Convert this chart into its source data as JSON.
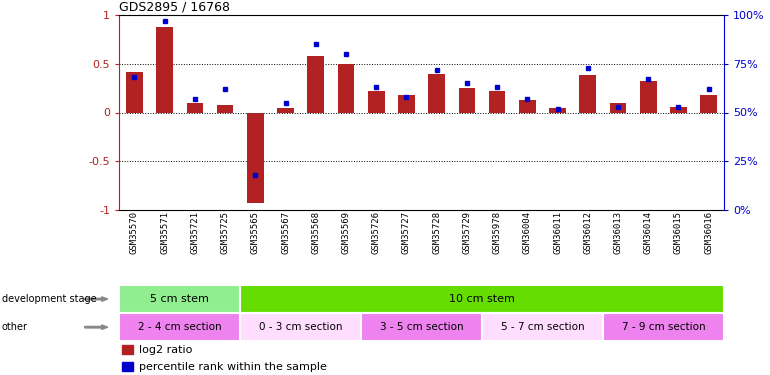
{
  "title": "GDS2895 / 16768",
  "samples": [
    "GSM35570",
    "GSM35571",
    "GSM35721",
    "GSM35725",
    "GSM35565",
    "GSM35567",
    "GSM35568",
    "GSM35569",
    "GSM35726",
    "GSM35727",
    "GSM35728",
    "GSM35729",
    "GSM35978",
    "GSM36004",
    "GSM36011",
    "GSM36012",
    "GSM36013",
    "GSM36014",
    "GSM36015",
    "GSM36016"
  ],
  "log2_ratio": [
    0.42,
    0.88,
    0.1,
    0.08,
    -0.93,
    0.05,
    0.58,
    0.5,
    0.22,
    0.18,
    0.4,
    0.25,
    0.22,
    0.13,
    0.05,
    0.38,
    0.1,
    0.32,
    0.06,
    0.18
  ],
  "percentile": [
    68,
    97,
    57,
    62,
    18,
    55,
    85,
    80,
    63,
    58,
    72,
    65,
    63,
    57,
    52,
    73,
    53,
    67,
    53,
    62
  ],
  "bar_color": "#b22222",
  "dot_color": "#0000cd",
  "ylim_left": [
    -1,
    1
  ],
  "ylim_right": [
    0,
    100
  ],
  "yticks_left": [
    -1,
    -0.5,
    0,
    0.5,
    1
  ],
  "yticks_right": [
    0,
    25,
    50,
    75,
    100
  ],
  "hlines": [
    -0.5,
    0,
    0.5
  ],
  "dev_stage_groups": [
    {
      "label": "5 cm stem",
      "start": 0,
      "end": 4,
      "color": "#90ee90"
    },
    {
      "label": "10 cm stem",
      "start": 4,
      "end": 20,
      "color": "#66dd00"
    }
  ],
  "other_groups": [
    {
      "label": "2 - 4 cm section",
      "start": 0,
      "end": 4,
      "color": "#ee82ee"
    },
    {
      "label": "0 - 3 cm section",
      "start": 4,
      "end": 8,
      "color": "#ffddff"
    },
    {
      "label": "3 - 5 cm section",
      "start": 8,
      "end": 12,
      "color": "#ee82ee"
    },
    {
      "label": "5 - 7 cm section",
      "start": 12,
      "end": 16,
      "color": "#ffddff"
    },
    {
      "label": "7 - 9 cm section",
      "start": 16,
      "end": 20,
      "color": "#ee82ee"
    }
  ],
  "row_labels": [
    "development stage",
    "other"
  ],
  "legend_items": [
    {
      "label": "log2 ratio",
      "color": "#b22222"
    },
    {
      "label": "percentile rank within the sample",
      "color": "#0000cd"
    }
  ],
  "background_color": "#ffffff",
  "tick_label_fontsize": 6.5,
  "bar_width": 0.55
}
